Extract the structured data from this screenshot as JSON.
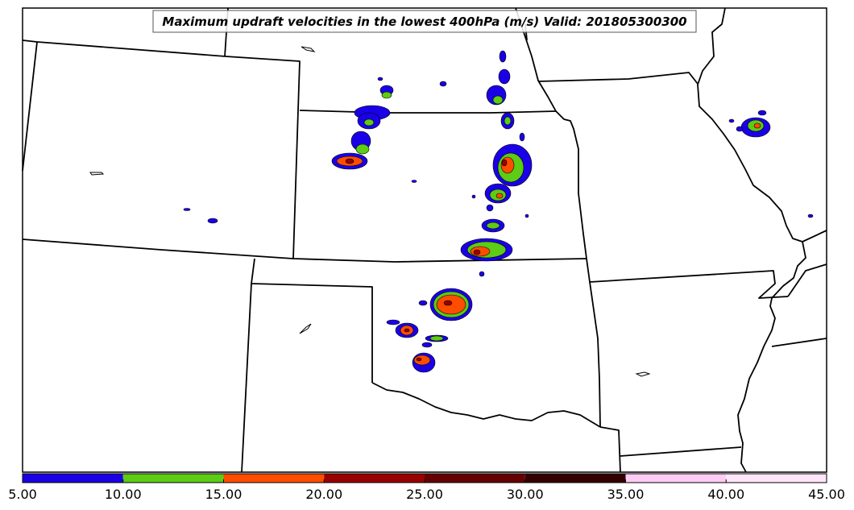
{
  "map": {
    "title": "Maximum updraft velocities in the lowest 400hPa (m/s) Valid: 201805300300"
  },
  "colorbar": {
    "ticks": [
      "5.00",
      "10.00",
      "15.00",
      "20.00",
      "25.00",
      "30.00",
      "35.00",
      "40.00",
      "45.00"
    ],
    "bins": [
      {
        "from": 5,
        "to": 10,
        "color": "#1a00e6"
      },
      {
        "from": 10,
        "to": 15,
        "color": "#5ccc14"
      },
      {
        "from": 15,
        "to": 20,
        "color": "#ff4d00"
      },
      {
        "from": 20,
        "to": 25,
        "color": "#990000"
      },
      {
        "from": 25,
        "to": 30,
        "color": "#660000"
      },
      {
        "from": 30,
        "to": 35,
        "color": "#330000"
      },
      {
        "from": 35,
        "to": 40,
        "color": "#ffccf5"
      },
      {
        "from": 40,
        "to": 45,
        "color": "#ffe6fa"
      }
    ]
  }
}
